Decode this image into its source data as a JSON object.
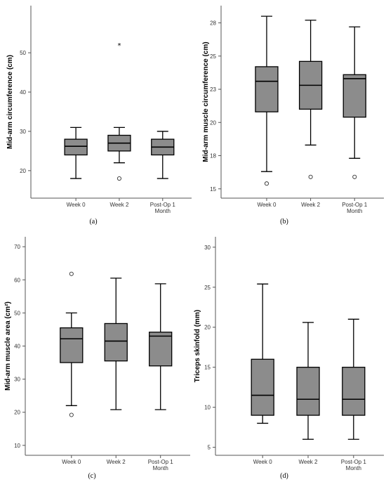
{
  "chart_data": [
    {
      "type": "box",
      "panel_label": "(a)",
      "ylabel": "Mid-arm circumference (cm)",
      "ylim": [
        13,
        62
      ],
      "yticks": [
        "20",
        "30",
        "40",
        "50"
      ],
      "categories": [
        {
          "lines": [
            "Week 0"
          ]
        },
        {
          "lines": [
            "Week 2"
          ]
        },
        {
          "lines": [
            "Post-Op 1",
            "Month"
          ]
        }
      ],
      "boxes": [
        {
          "min": 18,
          "q1": 24,
          "median": 26.2,
          "q3": 28,
          "max": 31,
          "outliers": [],
          "extremes": []
        },
        {
          "min": 22,
          "q1": 25,
          "median": 27,
          "q3": 29,
          "max": 31,
          "outliers": [
            18
          ],
          "extremes": [
            52
          ]
        },
        {
          "min": 18,
          "q1": 24,
          "median": 26,
          "q3": 28,
          "max": 30,
          "outliers": [],
          "extremes": []
        }
      ]
    },
    {
      "type": "box",
      "panel_label": "(b)",
      "ylabel": "Mid-arm muscle circumference (cm)",
      "ylim": [
        14.3,
        28.8
      ],
      "yticks": [
        "15",
        "18",
        "20",
        "23",
        "25",
        "28"
      ],
      "ytick_values": [
        15,
        17.5,
        20,
        22.5,
        25,
        27.5
      ],
      "categories": [
        {
          "lines": [
            "Week 0"
          ]
        },
        {
          "lines": [
            "Week 2"
          ]
        },
        {
          "lines": [
            "Post-Op 1",
            "Month"
          ]
        }
      ],
      "boxes": [
        {
          "min": 16.3,
          "q1": 20.8,
          "median": 23.1,
          "q3": 24.2,
          "max": 28,
          "outliers": [
            15.4
          ],
          "extremes": []
        },
        {
          "min": 18.3,
          "q1": 21,
          "median": 22.8,
          "q3": 24.6,
          "max": 27.7,
          "outliers": [
            15.9
          ],
          "extremes": []
        },
        {
          "min": 17.3,
          "q1": 20.4,
          "median": 23.3,
          "q3": 23.6,
          "max": 27.2,
          "outliers": [
            15.9
          ],
          "extremes": []
        }
      ]
    },
    {
      "type": "box",
      "panel_label": "(c)",
      "ylabel": "Mid-arm muscle area (cm²)",
      "ylim": [
        7,
        73
      ],
      "yticks": [
        "10",
        "20",
        "30",
        "40",
        "50",
        "60",
        "70"
      ],
      "categories": [
        {
          "lines": [
            "Week 0"
          ]
        },
        {
          "lines": [
            "Week 2"
          ]
        },
        {
          "lines": [
            "Post-Op 1",
            "Month"
          ]
        }
      ],
      "boxes": [
        {
          "min": 22,
          "q1": 35,
          "median": 42.2,
          "q3": 45.5,
          "max": 50,
          "outliers": [
            19.2,
            61.8
          ],
          "extremes": []
        },
        {
          "min": 20.8,
          "q1": 35.5,
          "median": 41.5,
          "q3": 46.8,
          "max": 60.5,
          "outliers": [],
          "extremes": []
        },
        {
          "min": 20.8,
          "q1": 34,
          "median": 43,
          "q3": 44.2,
          "max": 58.8,
          "outliers": [],
          "extremes": []
        }
      ]
    },
    {
      "type": "box",
      "panel_label": "(d)",
      "ylabel": "Triceps skinfold (mm)",
      "ylim": [
        4,
        31.3
      ],
      "yticks": [
        "5",
        "10",
        "15",
        "20",
        "25",
        "30"
      ],
      "categories": [
        {
          "lines": [
            "Week 0"
          ]
        },
        {
          "lines": [
            "Week 2"
          ]
        },
        {
          "lines": [
            "Post-Op 1",
            "Month"
          ]
        }
      ],
      "boxes": [
        {
          "min": 8,
          "q1": 9,
          "median": 11.5,
          "q3": 16,
          "max": 25.4,
          "outliers": [],
          "extremes": []
        },
        {
          "min": 6,
          "q1": 9,
          "median": 11,
          "q3": 15,
          "max": 20.6,
          "outliers": [],
          "extremes": []
        },
        {
          "min": 6,
          "q1": 9,
          "median": 11,
          "q3": 15,
          "max": 21,
          "outliers": [],
          "extremes": []
        }
      ]
    }
  ]
}
